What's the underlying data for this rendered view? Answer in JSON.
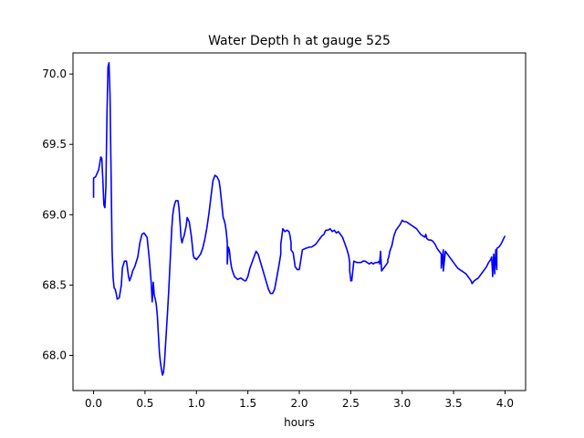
{
  "chart_data": {
    "type": "line",
    "title": "Water Depth h at gauge 525",
    "xlabel": "hours",
    "ylabel": "",
    "xlim": [
      -0.2,
      4.2
    ],
    "ylim": [
      67.75,
      70.15
    ],
    "grid": false,
    "x_ticks": [
      0.0,
      0.5,
      1.0,
      1.5,
      2.0,
      2.5,
      3.0,
      3.5,
      4.0
    ],
    "x_tick_labels": [
      "0.0",
      "0.5",
      "1.0",
      "1.5",
      "2.0",
      "2.5",
      "3.0",
      "3.5",
      "4.0"
    ],
    "y_ticks": [
      68.0,
      68.5,
      69.0,
      69.5,
      70.0
    ],
    "y_tick_labels": [
      "68.0",
      "68.5",
      "69.0",
      "69.5",
      "70.0"
    ],
    "series": [
      {
        "color": "#0000ff",
        "x": [
          0.0,
          0.0,
          0.02,
          0.05,
          0.07,
          0.08,
          0.09,
          0.1,
          0.11,
          0.12,
          0.13,
          0.14,
          0.15,
          0.16,
          0.17,
          0.18,
          0.19,
          0.2,
          0.21,
          0.22,
          0.23,
          0.25,
          0.27,
          0.28,
          0.3,
          0.32,
          0.34,
          0.35,
          0.37,
          0.38,
          0.4,
          0.43,
          0.45,
          0.47,
          0.49,
          0.5,
          0.52,
          0.54,
          0.56,
          0.57,
          0.58,
          0.59,
          0.6,
          0.61,
          0.62,
          0.63,
          0.64,
          0.65,
          0.66,
          0.67,
          0.68,
          0.69,
          0.7,
          0.71,
          0.72,
          0.73,
          0.74,
          0.75,
          0.76,
          0.77,
          0.78,
          0.79,
          0.8,
          0.82,
          0.83,
          0.84,
          0.85,
          0.86,
          0.87,
          0.88,
          0.9,
          0.91,
          0.93,
          0.95,
          0.96,
          0.97,
          0.98,
          0.99,
          1.0,
          1.02,
          1.04,
          1.06,
          1.08,
          1.1,
          1.12,
          1.14,
          1.16,
          1.18,
          1.2,
          1.22,
          1.23,
          1.24,
          1.25,
          1.26,
          1.27,
          1.28,
          1.29,
          1.3,
          1.3,
          1.31,
          1.32,
          1.33,
          1.34,
          1.35,
          1.37,
          1.4,
          1.43,
          1.45,
          1.47,
          1.48,
          1.5,
          1.52,
          1.55,
          1.57,
          1.58,
          1.6,
          1.62,
          1.64,
          1.66,
          1.68,
          1.7,
          1.72,
          1.74,
          1.76,
          1.78,
          1.8,
          1.82,
          1.82,
          1.84,
          1.86,
          1.88,
          1.9,
          1.91,
          1.92,
          1.92,
          1.94,
          1.96,
          1.97,
          1.98,
          2.0,
          2.03,
          2.06,
          2.1,
          2.12,
          2.14,
          2.16,
          2.18,
          2.2,
          2.22,
          2.24,
          2.25,
          2.26,
          2.28,
          2.3,
          2.32,
          2.34,
          2.36,
          2.38,
          2.4,
          2.42,
          2.44,
          2.46,
          2.48,
          2.49,
          2.49,
          2.5,
          2.5,
          2.51,
          2.53,
          2.56,
          2.58,
          2.6,
          2.62,
          2.64,
          2.66,
          2.68,
          2.7,
          2.72,
          2.74,
          2.76,
          2.76,
          2.78,
          2.78,
          2.79,
          2.8,
          2.82,
          2.84,
          2.86,
          2.86,
          2.87,
          2.88,
          2.9,
          2.92,
          2.94,
          2.96,
          2.98,
          3.0,
          3.02,
          3.04,
          3.06,
          3.08,
          3.1,
          3.12,
          3.14,
          3.16,
          3.18,
          3.2,
          3.22,
          3.23,
          3.24,
          3.26,
          3.28,
          3.3,
          3.32,
          3.34,
          3.36,
          3.38,
          3.38,
          3.4,
          3.4,
          3.42,
          3.44,
          3.46,
          3.48,
          3.5,
          3.52,
          3.54,
          3.56,
          3.58,
          3.6,
          3.62,
          3.64,
          3.66,
          3.67,
          3.68,
          3.7,
          3.72,
          3.74,
          3.76,
          3.78,
          3.8,
          3.82,
          3.84,
          3.86,
          3.87,
          3.88,
          3.88,
          3.89,
          3.9,
          3.9,
          3.91,
          3.92,
          3.92,
          3.94,
          3.96,
          3.98,
          4.0
        ],
        "y": [
          69.12,
          69.26,
          69.27,
          69.32,
          69.41,
          69.4,
          69.25,
          69.07,
          69.05,
          69.2,
          69.7,
          70.05,
          70.08,
          69.85,
          69.3,
          68.75,
          68.55,
          68.48,
          68.47,
          68.44,
          68.4,
          68.41,
          68.5,
          68.62,
          68.67,
          68.67,
          68.56,
          68.53,
          68.57,
          68.6,
          68.63,
          68.7,
          68.8,
          68.86,
          68.87,
          68.86,
          68.84,
          68.7,
          68.52,
          68.38,
          68.52,
          68.43,
          68.4,
          68.36,
          68.28,
          68.15,
          68.02,
          67.95,
          67.9,
          67.86,
          67.88,
          67.96,
          68.08,
          68.2,
          68.32,
          68.45,
          68.6,
          68.75,
          68.9,
          69.0,
          69.05,
          69.08,
          69.1,
          69.1,
          69.05,
          68.95,
          68.84,
          68.8,
          68.83,
          68.85,
          68.92,
          68.98,
          68.95,
          68.85,
          68.78,
          68.71,
          68.69,
          68.69,
          68.68,
          68.7,
          68.72,
          68.76,
          68.82,
          68.9,
          69.0,
          69.12,
          69.24,
          69.28,
          69.27,
          69.24,
          69.19,
          69.12,
          69.05,
          68.98,
          68.96,
          68.93,
          68.88,
          68.8,
          68.65,
          68.77,
          68.75,
          68.68,
          68.63,
          68.6,
          68.56,
          68.54,
          68.55,
          68.54,
          68.53,
          68.53,
          68.56,
          68.62,
          68.68,
          68.72,
          68.74,
          68.72,
          68.67,
          68.62,
          68.57,
          68.52,
          68.47,
          68.44,
          68.44,
          68.47,
          68.55,
          68.63,
          68.72,
          68.79,
          68.9,
          68.88,
          68.89,
          68.88,
          68.85,
          68.8,
          68.75,
          68.73,
          68.63,
          68.62,
          68.61,
          68.61,
          68.75,
          68.76,
          68.77,
          68.77,
          68.78,
          68.79,
          68.81,
          68.83,
          68.85,
          68.86,
          68.88,
          68.89,
          68.89,
          68.9,
          68.88,
          68.89,
          68.87,
          68.88,
          68.86,
          68.84,
          68.8,
          68.76,
          68.71,
          68.66,
          68.6,
          68.54,
          68.53,
          68.53,
          68.67,
          68.66,
          68.66,
          68.66,
          68.67,
          68.67,
          68.66,
          68.65,
          68.66,
          68.65,
          68.66,
          68.66,
          68.66,
          68.67,
          68.65,
          68.74,
          68.6,
          68.62,
          68.64,
          68.66,
          68.68,
          68.7,
          68.74,
          68.78,
          68.85,
          68.89,
          68.91,
          68.93,
          68.96,
          68.95,
          68.95,
          68.94,
          68.93,
          68.92,
          68.91,
          68.9,
          68.88,
          68.86,
          68.85,
          68.84,
          68.86,
          68.83,
          68.82,
          68.82,
          68.81,
          68.79,
          68.76,
          68.74,
          68.72,
          68.62,
          68.75,
          68.6,
          68.74,
          68.72,
          68.7,
          68.68,
          68.66,
          68.64,
          68.62,
          68.61,
          68.6,
          68.59,
          68.58,
          68.56,
          68.54,
          68.53,
          68.51,
          68.53,
          68.54,
          68.55,
          68.57,
          68.59,
          68.61,
          68.63,
          68.66,
          68.68,
          68.7,
          68.56,
          68.57,
          68.72,
          68.58,
          68.6,
          68.75,
          68.61,
          68.76,
          68.77,
          68.79,
          68.82,
          68.85
        ]
      }
    ]
  }
}
